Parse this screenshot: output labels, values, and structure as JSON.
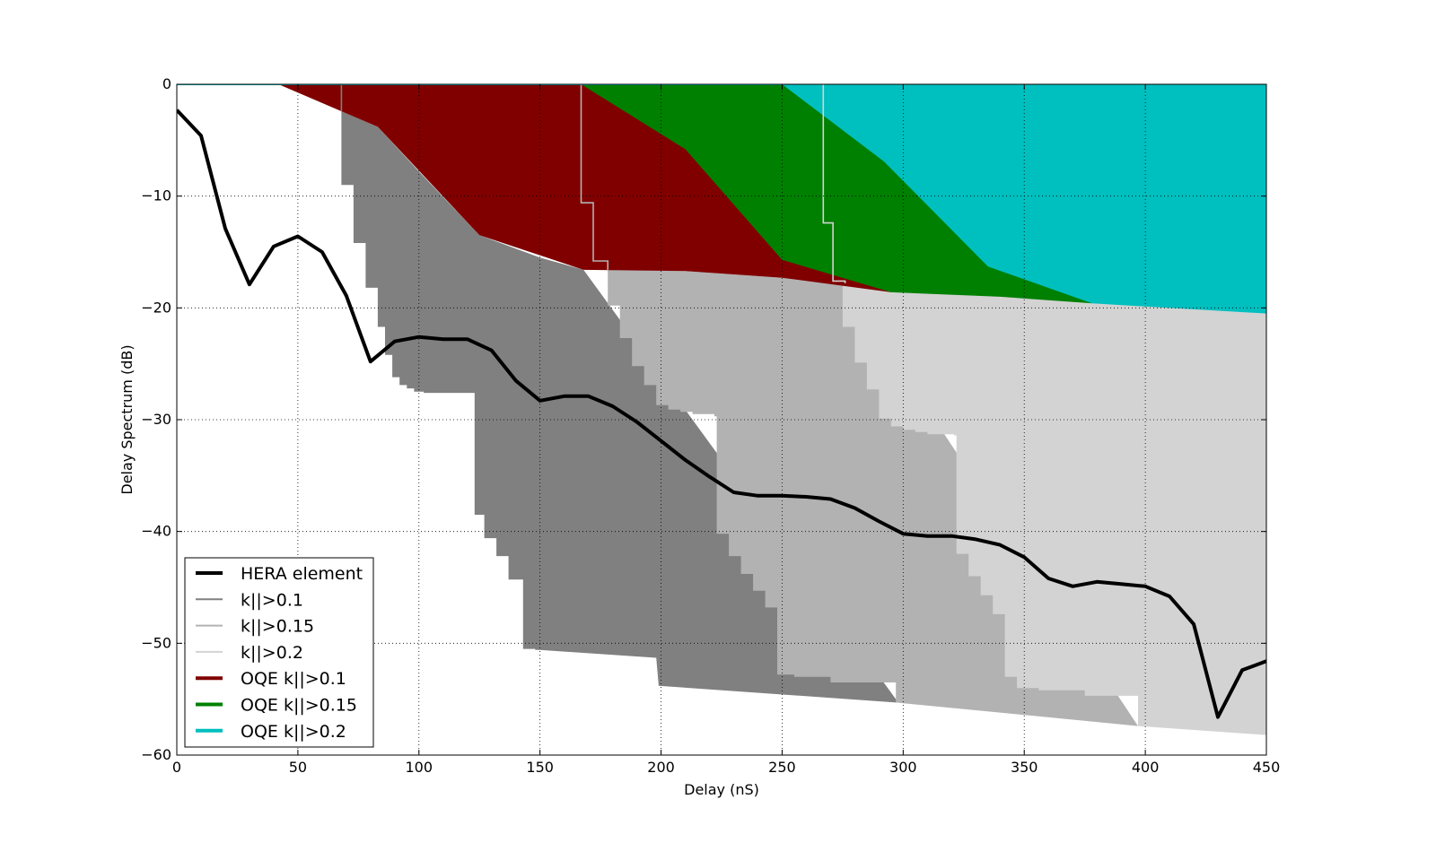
{
  "chart_data": {
    "type": "area",
    "title": "",
    "xlabel": "Delay (nS)",
    "ylabel": "Delay Spectrum (dB)",
    "xlim": [
      0,
      450
    ],
    "ylim": [
      -60,
      0
    ],
    "x_ticks": [
      "0",
      "50",
      "100",
      "150",
      "200",
      "250",
      "300",
      "350",
      "400",
      "450"
    ],
    "y_ticks": [
      "0",
      "−10",
      "−20",
      "−30",
      "−40",
      "−50",
      "−60"
    ],
    "grid": true,
    "legend_position": "lower-left",
    "legend": [
      {
        "label": "HERA element",
        "color": "#000000",
        "weight": "bold"
      },
      {
        "label": "k||>0.1",
        "color": "#808080",
        "weight": "thin"
      },
      {
        "label": "k||>0.15",
        "color": "#b2b2b2",
        "weight": "thin"
      },
      {
        "label": "k||>0.2",
        "color": "#d3d3d3",
        "weight": "thin"
      },
      {
        "label": "OQE k||>0.1",
        "color": "#800000",
        "weight": "bold"
      },
      {
        "label": "OQE k||>0.15",
        "color": "#008000",
        "weight": "bold"
      },
      {
        "label": "OQE k||>0.2",
        "color": "#00bfbf",
        "weight": "bold"
      }
    ],
    "series": [
      {
        "name": "HERA element",
        "kind": "line",
        "color": "#000000",
        "x": [
          0,
          10,
          20,
          30,
          40,
          50,
          60,
          70,
          80,
          90,
          100,
          110,
          120,
          130,
          140,
          150,
          160,
          170,
          180,
          190,
          200,
          210,
          220,
          230,
          240,
          250,
          260,
          270,
          280,
          290,
          300,
          310,
          320,
          330,
          340,
          350,
          360,
          370,
          380,
          390,
          400,
          410,
          420,
          430,
          440,
          450
        ],
        "y": [
          -2.3,
          -4.6,
          -12.9,
          -17.9,
          -14.5,
          -13.6,
          -15.0,
          -18.9,
          -24.8,
          -23.0,
          -22.6,
          -22.8,
          -22.8,
          -23.8,
          -26.5,
          -28.3,
          -27.9,
          -27.9,
          -28.8,
          -30.2,
          -31.9,
          -33.6,
          -35.1,
          -36.5,
          -36.8,
          -36.8,
          -36.9,
          -37.1,
          -37.9,
          -39.1,
          -40.2,
          -40.4,
          -40.4,
          -40.7,
          -41.2,
          -42.3,
          -44.2,
          -44.9,
          -44.5,
          -44.7,
          -44.9,
          -45.8,
          -48.3,
          -56.6,
          -52.4,
          -51.6
        ]
      },
      {
        "name": "k||>0.1",
        "kind": "region",
        "color": "#808080",
        "upper": {
          "x": [
            68,
            83,
            100,
            125,
            150,
            168
          ],
          "y": [
            -2.4,
            -3.8,
            -7.8,
            -13.5,
            -15.5,
            -16.6
          ]
        },
        "step_x": [
          68,
          73,
          78,
          83,
          86,
          89,
          92,
          95,
          98,
          102,
          112,
          122,
          123,
          127,
          132,
          137,
          143,
          148,
          150
        ],
        "step_y": [
          -9,
          -14.2,
          -18.2,
          -21.7,
          -24.2,
          -26.2,
          -26.9,
          -27.2,
          -27.5,
          -27.6,
          -27.6,
          -27.6,
          -38.5,
          -40.6,
          -42.2,
          -44.3,
          -50.5,
          -50.6,
          -50.6
        ],
        "lower": {
          "x": [
            150,
            198,
            199,
            297,
            298
          ],
          "y": [
            -50.6,
            -51.3,
            -53.8,
            -55.3,
            -55.3
          ]
        }
      },
      {
        "name": "k||>0.15",
        "kind": "region",
        "color": "#b2b2b2",
        "upper": {
          "x": [
            178,
            210,
            250,
            275
          ],
          "y": [
            -16.6,
            -16.7,
            -17.3,
            -17.6
          ]
        },
        "step_x": [
          178,
          183,
          188,
          193,
          198,
          203,
          208,
          213,
          222,
          223,
          228,
          233,
          238,
          243,
          248,
          255,
          270,
          297
        ],
        "step_y": [
          -19.8,
          -22.7,
          -25.2,
          -26.9,
          -28.7,
          -29.1,
          -29.3,
          -29.5,
          -29.7,
          -40.2,
          -42.2,
          -43.8,
          -45.3,
          -46.8,
          -52.8,
          -53.0,
          -53.5,
          -55.3
        ],
        "lower": {
          "x": [
            297,
            340,
            397
          ],
          "y": [
            -55.3,
            -56.2,
            -57.4
          ]
        }
      },
      {
        "name": "k||>0.2",
        "kind": "region",
        "color": "#d3d3d3",
        "upper": {
          "x": [
            275,
            300,
            350,
            400,
            450
          ],
          "y": [
            -17.6,
            -18.6,
            -19.0,
            -19.8,
            -20.5
          ]
        },
        "step_x": [
          275,
          280,
          285,
          290,
          295,
          300,
          305,
          310,
          321,
          322,
          327,
          332,
          337,
          342,
          347,
          356,
          375,
          397
        ],
        "step_y": [
          -21.7,
          -24.9,
          -27.3,
          -29.9,
          -30.6,
          -30.9,
          -31.1,
          -31.3,
          -31.4,
          -42.0,
          -44.0,
          -45.7,
          -47.4,
          -53.0,
          -54.0,
          -54.2,
          -54.7,
          -55.1
        ],
        "lower": {
          "x": [
            397,
            450
          ],
          "y": [
            -57.4,
            -58.2
          ]
        }
      },
      {
        "name": "OQE k||>0.1",
        "kind": "fill",
        "color": "#800000",
        "boundary": {
          "x": [
            42,
            83,
            125,
            168,
            210,
            250,
            295
          ],
          "y": [
            0,
            -3.8,
            -13.5,
            -16.6,
            -16.7,
            -17.3,
            -18.6
          ]
        }
      },
      {
        "name": "OQE k||>0.15",
        "kind": "fill",
        "color": "#008000",
        "boundary": {
          "x": [
            167,
            210,
            250,
            295,
            340,
            378
          ],
          "y": [
            0,
            -5.8,
            -15.7,
            -18.6,
            -19.0,
            -19.6
          ]
        }
      },
      {
        "name": "OQE k||>0.2",
        "kind": "fill",
        "color": "#00bfbf",
        "boundary": {
          "x": [
            250,
            292,
            335,
            378,
            450
          ],
          "y": [
            0,
            -6.9,
            -16.3,
            -19.6,
            -20.5
          ]
        }
      }
    ],
    "threshold_lines": [
      {
        "series": "k||>0.1",
        "color": "#808080",
        "x": [
          68,
          68
        ],
        "y": [
          0,
          -2.4
        ]
      },
      {
        "series": "k||>0.15",
        "color": "#b2b2b2",
        "x": [
          167,
          167,
          172,
          172,
          178,
          178
        ],
        "y": [
          0,
          -10.6,
          -10.6,
          -15.8,
          -15.8,
          -16.6
        ]
      },
      {
        "series": "k||>0.2",
        "color": "#d3d3d3",
        "x": [
          267,
          267,
          271,
          271,
          276,
          276
        ],
        "y": [
          0,
          -12.4,
          -12.4,
          -17.6,
          -17.6,
          -17.8
        ]
      }
    ]
  }
}
